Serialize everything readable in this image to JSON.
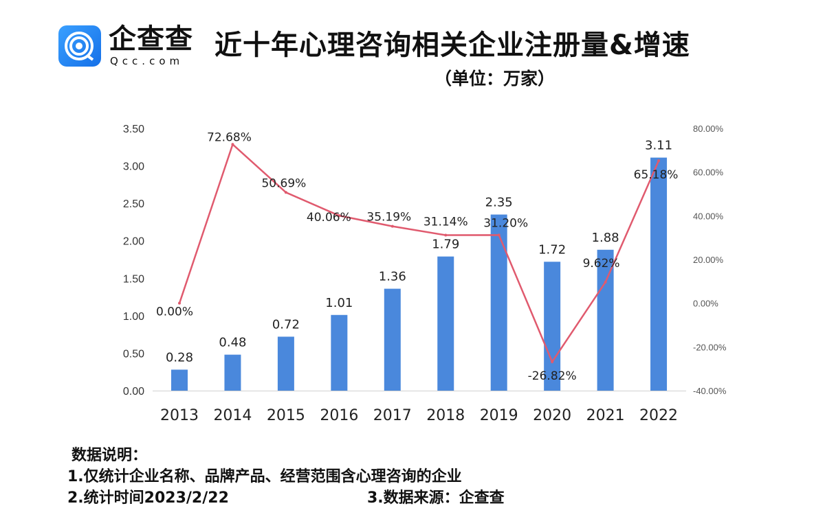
{
  "header": {
    "logo_text": "企查查",
    "logo_sub": "Qcc.com",
    "title": "近十年心理咨询相关企业注册量&增速",
    "unit": "（单位：万家）"
  },
  "colors": {
    "bar": "#4a88dc",
    "line": "#e05a6e",
    "logo": "#1f7cf0"
  },
  "chart_data": {
    "type": "bar+line",
    "categories": [
      "2013",
      "2014",
      "2015",
      "2016",
      "2017",
      "2018",
      "2019",
      "2020",
      "2021",
      "2022"
    ],
    "series": [
      {
        "axis": "left",
        "type": "bar",
        "values": [
          0.28,
          0.48,
          0.72,
          1.01,
          1.36,
          1.79,
          2.35,
          1.72,
          1.88,
          3.11
        ],
        "labels": [
          "0.28",
          "0.48",
          "0.72",
          "1.01",
          "1.36",
          "1.79",
          "2.35",
          "1.72",
          "1.88",
          "3.11"
        ]
      },
      {
        "axis": "right",
        "type": "line",
        "values": [
          0.0,
          72.68,
          50.69,
          40.06,
          35.19,
          31.14,
          31.2,
          -26.82,
          9.62,
          65.18
        ],
        "labels": [
          "0.00%",
          "72.68%",
          "50.69%",
          "40.06%",
          "35.19%",
          "31.14%",
          "31.20%",
          "-26.82%",
          "9.62%",
          "65.18%"
        ]
      }
    ],
    "left_axis": {
      "range": [
        0,
        3.5
      ],
      "ticks": [
        "0.00",
        "0.50",
        "1.00",
        "1.50",
        "2.00",
        "2.50",
        "3.00",
        "3.50"
      ]
    },
    "right_axis": {
      "range": [
        -40,
        80
      ],
      "ticks": [
        "-40.00%",
        "-20.00%",
        "0.00%",
        "20.00%",
        "40.00%",
        "60.00%",
        "80.00%"
      ]
    },
    "grid": false,
    "legend": "none"
  },
  "notes": {
    "heading": "数据说明：",
    "line1": "1.仅统计企业名称、品牌产品、经营范围含心理咨询的企业",
    "line2": "2.统计时间2023/2/22",
    "line3": "3.数据来源：企查查"
  }
}
